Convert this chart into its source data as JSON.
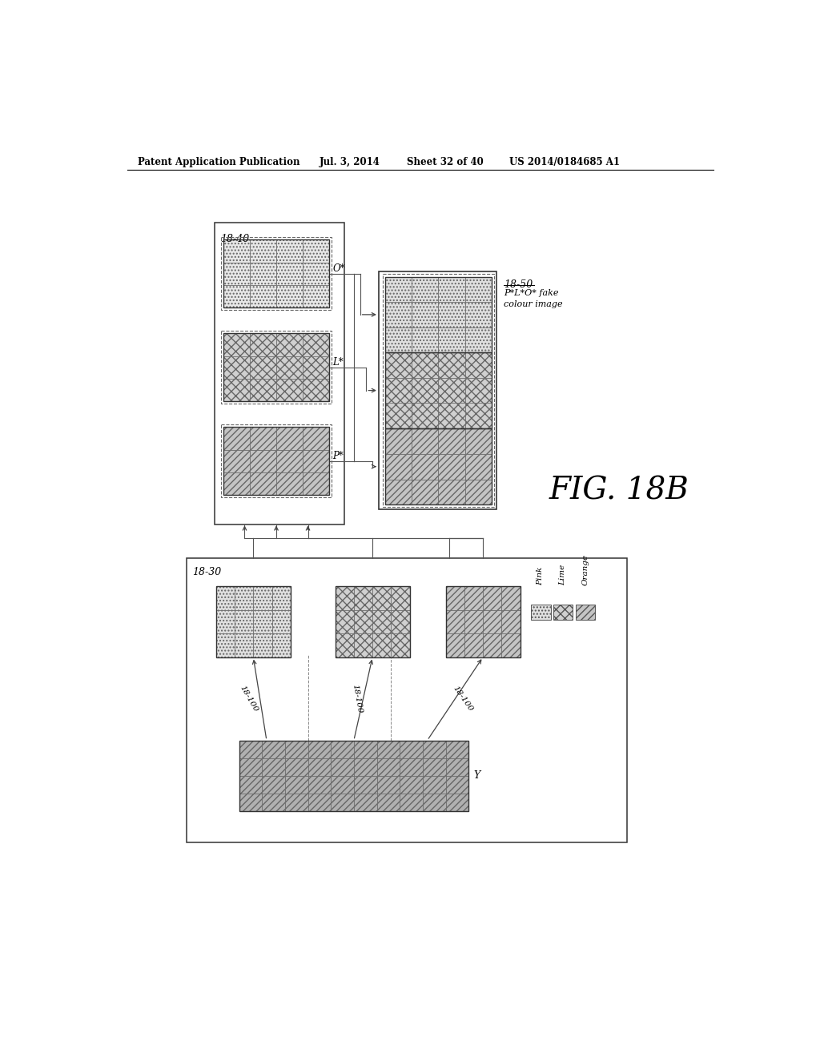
{
  "bg_color": "#ffffff",
  "header_text": "Patent Application Publication",
  "header_date": "Jul. 3, 2014",
  "header_sheet": "Sheet 32 of 40",
  "header_patent": "US 2014/0184685 A1",
  "fig_label": "FIG. 18B",
  "box_18_40_label": "18-40",
  "box_18_50_label": "18-50",
  "box_18_30_label": "18-30",
  "label_O": "O*",
  "label_L": "L*",
  "label_P": "P*",
  "label_18_50_line1": "18-50",
  "label_18_50_line2": "P*L*O* fake",
  "label_18_50_line3": "colour image",
  "label_Y": "Y",
  "label_Pink": "Pink",
  "label_Lime": "Lime",
  "label_Orange": "Orange",
  "label_18_100": "18-100"
}
